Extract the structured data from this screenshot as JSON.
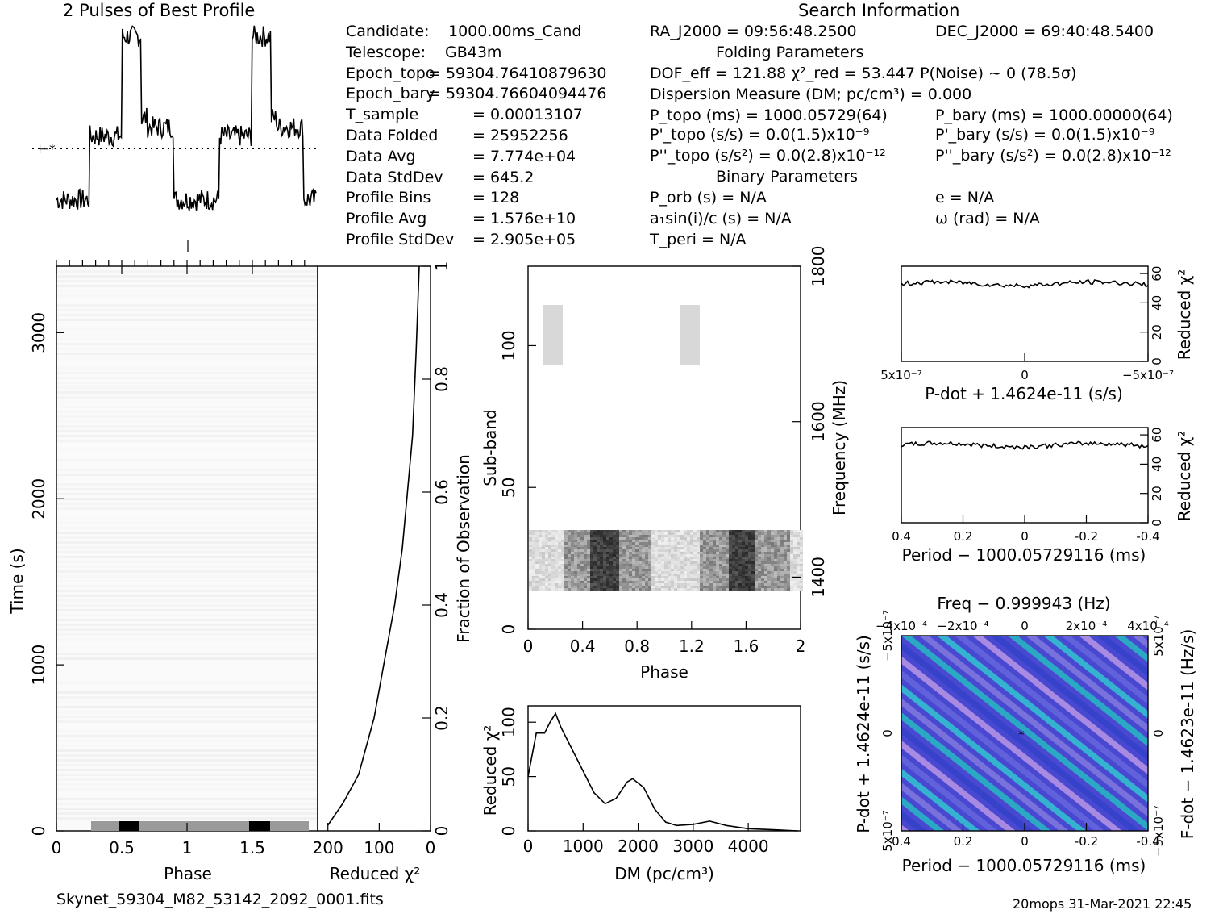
{
  "header": {
    "profile_title": "2 Pulses of Best Profile",
    "search_title": "Search Information",
    "folding_title": "Folding Parameters",
    "binary_title": "Binary Parameters"
  },
  "info_left": [
    {
      "k": "Candidate:",
      "v": "1000.00ms_Cand"
    },
    {
      "k": "Telescope:",
      "v": "GB43m"
    },
    {
      "k": "Epoch_topo",
      "v": "= 59304.76410879630"
    },
    {
      "k": "Epoch_bary",
      "v": "= 59304.76604094476"
    },
    {
      "k": "T_sample",
      "v": "=  0.00013107"
    },
    {
      "k": "Data Folded",
      "v": "=  25952256"
    },
    {
      "k": "Data Avg",
      "v": "=  7.774e+04"
    },
    {
      "k": "Data StdDev",
      "v": "=  645.2"
    },
    {
      "k": "Profile Bins",
      "v": "=  128"
    },
    {
      "k": "Profile Avg",
      "v": "=  1.576e+10"
    },
    {
      "k": "Profile StdDev",
      "v": "=  2.905e+05"
    }
  ],
  "info_right": {
    "ra": "RA_J2000 = 09:56:48.2500",
    "dec": "DEC_J2000 = 69:40:48.5400",
    "dof": "DOF_eff = 121.88  χ²_red = 53.447  P(Noise) ~ 0   (78.5σ)",
    "dm": "Dispersion Measure (DM; pc/cm³) = 0.000",
    "p_topo": "P_topo (ms) =  1000.05729(64)",
    "p_bary": "P_bary (ms) =  1000.00000(64)",
    "pd_topo": "P'_topo (s/s) = 0.0(1.5)x10⁻⁹",
    "pd_bary": "P'_bary (s/s) = 0.0(1.5)x10⁻⁹",
    "pdd_topo": "P''_topo (s/s²) = 0.0(2.8)x10⁻¹²",
    "pdd_bary": "P''_bary (s/s²) = 0.0(2.8)x10⁻¹²",
    "p_orb": "P_orb (s) = N/A",
    "e": "e = N/A",
    "a1": "a₁sin(i)/c (s) = N/A",
    "omega": "ω (rad) = N/A",
    "t_peri": "T_peri = N/A"
  },
  "footer": {
    "filename": "Skynet_59304_M82_53142_2092_0001.fits",
    "stamp": "20mops 31-Mar-2021 22:45"
  },
  "axes": {
    "time_ylabel": "Time (s)",
    "phase_xlabel": "Phase",
    "redchi_xlabel": "Reduced χ²",
    "fraction_label": "Fraction of Observation",
    "subband_label": "Sub-band",
    "frequency_label": "Frequency (MHz)",
    "dm_xlabel": "DM (pc/cm³)",
    "dm_ylabel": "Reduced χ²",
    "pdot_xlabel": "P-dot + 1.4624e-11 (s/s)",
    "period_xlabel": "Period − 1000.05729116 (ms)",
    "period_xlabel2": "Period − 1000.05729116 (ms)",
    "freq_top_label": "Freq − 0.999943 (Hz)",
    "pdot_left_label": "P-dot + 1.4624e-11 (s/s)",
    "fdot_right_label": "F-dot − 1.4623e-11 (Hz/s)",
    "redchi_right_label": "Reduced χ²"
  },
  "chart_data": [
    {
      "type": "line",
      "title": "2 Pulses of Best Profile",
      "x": [
        0,
        0.1,
        0.2,
        0.25,
        0.3,
        0.45,
        0.5,
        0.55,
        0.6,
        0.65,
        0.7,
        0.8,
        0.9,
        1.0,
        1.1,
        1.2,
        1.25,
        1.3,
        1.45,
        1.5,
        1.55,
        1.6,
        1.65,
        1.7,
        1.8,
        1.9,
        2.0
      ],
      "y": [
        0.1,
        0.1,
        0.1,
        0.45,
        0.45,
        0.45,
        1.0,
        1.0,
        1.0,
        0.55,
        0.5,
        0.5,
        0.1,
        0.1,
        0.1,
        0.1,
        0.45,
        0.45,
        0.45,
        1.0,
        1.0,
        1.0,
        0.55,
        0.5,
        0.5,
        0.1,
        0.1
      ]
    },
    {
      "type": "line",
      "xlabel": "Reduced χ²",
      "ylabel": "Fraction of Observation",
      "xticks": [
        200,
        100,
        0
      ],
      "yticks": [
        0,
        0.2,
        0.4,
        0.6,
        0.8,
        1
      ],
      "x": [
        200,
        170,
        140,
        110,
        90,
        70,
        55,
        45,
        35,
        28,
        22
      ],
      "y": [
        0.01,
        0.05,
        0.1,
        0.2,
        0.3,
        0.4,
        0.5,
        0.6,
        0.7,
        0.85,
        1.0
      ]
    },
    {
      "type": "heatmap",
      "xlabel": "Phase",
      "ylabel": "Time (s)",
      "xticks": [
        0,
        0.5,
        1,
        1.5
      ],
      "yticks": [
        0,
        1000,
        2000,
        3000
      ]
    },
    {
      "type": "heatmap",
      "xlabel": "Phase",
      "ylabel": "Sub-band",
      "xticks": [
        0,
        0.4,
        0.8,
        1.2,
        1.6,
        2
      ],
      "yticks": [
        0,
        50,
        100
      ],
      "freq_ticks": [
        1400,
        1600,
        1800
      ]
    },
    {
      "type": "line",
      "xlabel": "DM (pc/cm³)",
      "ylabel": "Reduced χ²",
      "xticks": [
        0,
        1000,
        2000,
        3000,
        4000
      ],
      "yticks": [
        0,
        50,
        100
      ],
      "x": [
        0,
        150,
        300,
        400,
        500,
        600,
        800,
        1000,
        1200,
        1400,
        1600,
        1800,
        1900,
        2100,
        2300,
        2500,
        2700,
        3000,
        3300,
        3600,
        4000,
        4500,
        4900
      ],
      "y": [
        50,
        90,
        90,
        100,
        108,
        95,
        75,
        55,
        35,
        25,
        30,
        45,
        48,
        40,
        20,
        8,
        5,
        6,
        9,
        5,
        2,
        1,
        0
      ]
    },
    {
      "type": "line",
      "xlabel": "P-dot + 1.4624e-11 (s/s)",
      "ylabel": "Reduced χ²",
      "yticks": [
        0,
        20,
        40,
        60
      ],
      "xtick_labels": [
        "5x10⁻⁷",
        "0",
        "−5x10⁻⁷"
      ],
      "y_level": 53
    },
    {
      "type": "line",
      "xlabel": "Period − 1000.05729116 (ms)",
      "ylabel": "Reduced χ²",
      "yticks": [
        0,
        20,
        40,
        60
      ],
      "xticks": [
        0.4,
        0.2,
        0,
        -0.2,
        -0.4
      ],
      "y_level": 53
    },
    {
      "type": "heatmap",
      "xlabel": "Period − 1000.05729116 (ms)",
      "ylabel": "P-dot + 1.4624e-11 (s/s)",
      "xticks": [
        0.4,
        0.2,
        0,
        -0.2,
        -0.4
      ],
      "top_ticks": [
        "−4x10⁻⁴",
        "−2x10⁻⁴",
        "0",
        "2x10⁻⁴",
        "4x10⁻⁴"
      ],
      "left_ticks": [
        "−5x10⁻⁷",
        "0",
        "5x10⁻⁷"
      ],
      "right_ticks": [
        "5x10⁻⁷",
        "0",
        "−5x10⁻⁷"
      ]
    }
  ]
}
